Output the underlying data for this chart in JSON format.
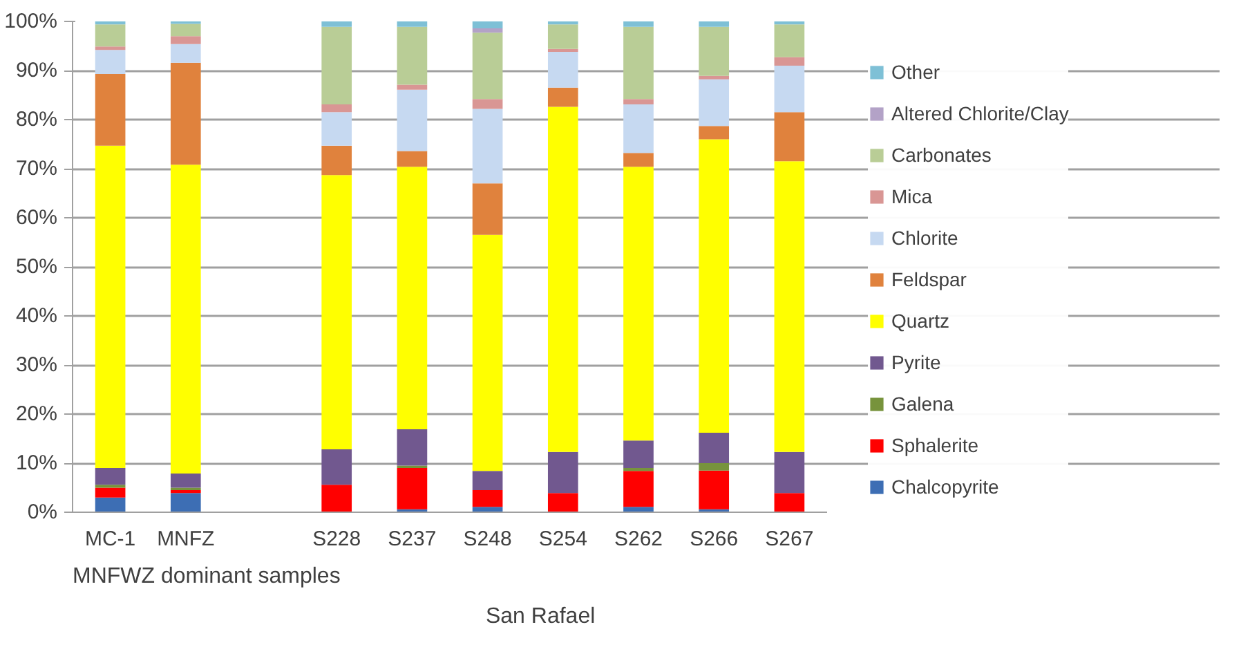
{
  "chart_data": {
    "type": "bar",
    "stacked": true,
    "categories": [
      "MC-1",
      "MNFZ",
      null,
      "S228",
      "S237",
      "S248",
      "S254",
      "S262",
      "S266",
      "S267"
    ],
    "ylim": [
      0,
      100
    ],
    "yticks": [
      {
        "value": 0,
        "label": "0%"
      },
      {
        "value": 10,
        "label": "10%"
      },
      {
        "value": 20,
        "label": "20%"
      },
      {
        "value": 30,
        "label": "30%"
      },
      {
        "value": 40,
        "label": "40%"
      },
      {
        "value": 50,
        "label": "50%"
      },
      {
        "value": 60,
        "label": "60%"
      },
      {
        "value": 70,
        "label": "70%"
      },
      {
        "value": 80,
        "label": "80%"
      },
      {
        "value": 90,
        "label": "90%"
      },
      {
        "value": 100,
        "label": "100%"
      }
    ],
    "grid": "y",
    "legend": "right",
    "annotations": [
      "MNFWZ dominant samples",
      "San Rafael"
    ],
    "series": [
      {
        "name": "Chalcopyrite",
        "color": "#3d6eb4",
        "values": [
          3,
          3.9,
          null,
          0,
          0.6,
          1.1,
          0,
          1.1,
          0.6,
          0
        ]
      },
      {
        "name": "Sphalerite",
        "color": "#ff0000",
        "values": [
          2,
          0.6,
          null,
          5.6,
          8.4,
          3.4,
          3.9,
          7.3,
          7.9,
          3.9
        ]
      },
      {
        "name": "Galena",
        "color": "#77933c",
        "values": [
          0.6,
          0.5,
          null,
          0,
          0.5,
          0,
          0,
          0.6,
          1.5,
          0
        ]
      },
      {
        "name": "Pyrite",
        "color": "#71588f",
        "values": [
          3.4,
          2.9,
          null,
          7.2,
          7.4,
          3.9,
          8.4,
          5.6,
          6.2,
          8.4
        ]
      },
      {
        "name": "Quartz",
        "color": "#ffff00",
        "values": [
          65.7,
          62.9,
          null,
          55.9,
          53.5,
          48.1,
          70.3,
          55.8,
          59.8,
          59.2
        ]
      },
      {
        "name": "Feldspar",
        "color": "#e0823d",
        "values": [
          14.6,
          20.8,
          null,
          6,
          3.2,
          10.5,
          3.9,
          2.8,
          2.7,
          10
        ]
      },
      {
        "name": "Chlorite",
        "color": "#c6d9f1",
        "values": [
          4.9,
          3.8,
          null,
          6.8,
          12.5,
          15.2,
          7.3,
          9.9,
          9.5,
          9.5
        ]
      },
      {
        "name": "Mica",
        "color": "#d99694",
        "values": [
          0.7,
          1.6,
          null,
          1.6,
          1,
          2,
          0.6,
          1.1,
          0.7,
          1.7
        ]
      },
      {
        "name": "Carbonates",
        "color": "#b9cd96",
        "values": [
          4.5,
          2.5,
          null,
          15.8,
          11.8,
          13.5,
          5,
          14.7,
          10,
          6.7
        ]
      },
      {
        "name": "Altered Chlorite/Clay",
        "color": "#b3a2c7",
        "values": [
          0,
          0,
          null,
          0,
          0,
          0.9,
          0,
          0,
          0,
          0
        ]
      },
      {
        "name": "Other",
        "color": "#7ec0d6",
        "values": [
          0.6,
          0.5,
          null,
          1.1,
          1.1,
          1.4,
          0.6,
          1.1,
          1.1,
          0.6
        ]
      }
    ]
  }
}
